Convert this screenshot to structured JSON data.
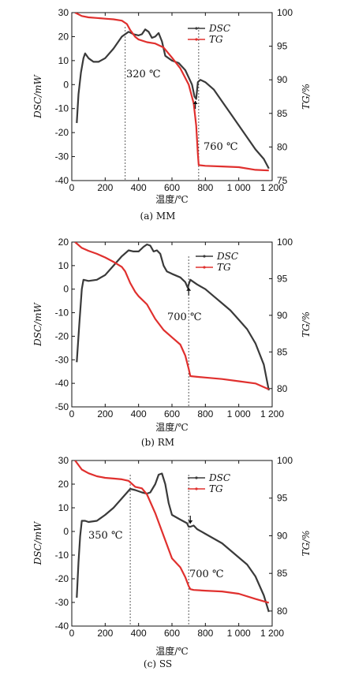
{
  "chart_data": [
    {
      "type": "line",
      "caption": "(a) MM",
      "xlabel": "温度/℃",
      "ylabel_left": "DSC/mW",
      "ylabel_right": "TG/%",
      "xlim": [
        0,
        1200
      ],
      "ylim_left": [
        -40,
        30
      ],
      "ylim_right": [
        75,
        100
      ],
      "x_ticks": [
        0,
        200,
        400,
        600,
        800,
        1000,
        1200
      ],
      "x_tick_labels": [
        "0",
        "200",
        "400",
        "600",
        "800",
        "1 000",
        "1 200"
      ],
      "y_ticks_left": [
        -40,
        -30,
        -20,
        -10,
        0,
        10,
        20,
        30
      ],
      "y_ticks_right": [
        75,
        80,
        85,
        90,
        95,
        100
      ],
      "legend": [
        "DSC",
        "TG"
      ],
      "legend_position": "top-right",
      "series": [
        {
          "name": "DSC",
          "axis": "left",
          "color": "#3a3a3a",
          "x": [
            30,
            40,
            55,
            70,
            80,
            100,
            130,
            160,
            200,
            250,
            300,
            340,
            370,
            400,
            420,
            440,
            460,
            480,
            500,
            520,
            540,
            560,
            600,
            640,
            680,
            700,
            720,
            735,
            745,
            755,
            770,
            800,
            850,
            900,
            950,
            1000,
            1050,
            1100,
            1150,
            1180
          ],
          "y": [
            -16,
            -4,
            5,
            11,
            13,
            11,
            9.5,
            9.5,
            11,
            15,
            20,
            22,
            21,
            20.5,
            21,
            23,
            22,
            19.5,
            20,
            21.5,
            18,
            12,
            10,
            9,
            6,
            3,
            0,
            -5,
            -6,
            1,
            2,
            1,
            -2,
            -7,
            -12,
            -17,
            -22,
            -27,
            -31,
            -35
          ]
        },
        {
          "name": "TG",
          "axis": "right",
          "color": "#e0302e",
          "x": [
            20,
            60,
            100,
            150,
            200,
            250,
            300,
            330,
            350,
            380,
            400,
            450,
            500,
            550,
            600,
            650,
            700,
            730,
            745,
            755,
            760,
            800,
            900,
            1000,
            1100,
            1180
          ],
          "y": [
            100,
            99.5,
            99.3,
            99.2,
            99.1,
            99,
            98.8,
            98.3,
            97.4,
            96.4,
            96,
            95.6,
            95.4,
            94.8,
            93.3,
            91.7,
            89.3,
            86.5,
            83.2,
            79,
            77.3,
            77.2,
            77.1,
            77,
            76.6,
            76.5
          ]
        }
      ],
      "annotations": [
        {
          "text": "320 ℃",
          "x": 320
        },
        {
          "text": "760 ℃",
          "x": 760
        }
      ]
    },
    {
      "type": "line",
      "caption": "(b) RM",
      "xlabel": "温度/℃",
      "ylabel_left": "DSC/mW",
      "ylabel_right": "TG/%",
      "xlim": [
        0,
        1200
      ],
      "ylim_left": [
        -50,
        20
      ],
      "ylim_right": [
        77.5,
        100
      ],
      "x_ticks": [
        0,
        200,
        400,
        600,
        800,
        1000,
        1200
      ],
      "x_tick_labels": [
        "0",
        "200",
        "400",
        "600",
        "800",
        "1 000",
        "1 200"
      ],
      "y_ticks_left": [
        -50,
        -40,
        -30,
        -20,
        -10,
        0,
        10,
        20
      ],
      "y_ticks_right": [
        80,
        85,
        90,
        95,
        100
      ],
      "legend": [
        "DSC",
        "TG"
      ],
      "legend_position": "top-right",
      "series": [
        {
          "name": "DSC",
          "axis": "left",
          "color": "#3a3a3a",
          "x": [
            30,
            45,
            60,
            70,
            100,
            150,
            200,
            250,
            300,
            340,
            370,
            400,
            430,
            450,
            470,
            490,
            510,
            530,
            550,
            570,
            600,
            650,
            680,
            695,
            700,
            710,
            750,
            800,
            850,
            900,
            950,
            1000,
            1050,
            1100,
            1150,
            1180
          ],
          "y": [
            -31,
            -15,
            0,
            4,
            3.5,
            4,
            6,
            10,
            14,
            16.5,
            16,
            16,
            18,
            19,
            18.5,
            16,
            16.5,
            15,
            10,
            7.5,
            6.5,
            5,
            3,
            0.5,
            2,
            4,
            2,
            0,
            -3,
            -6,
            -9,
            -13,
            -17,
            -23,
            -32,
            -43
          ]
        },
        {
          "name": "TG",
          "axis": "right",
          "color": "#e0302e",
          "x": [
            20,
            60,
            100,
            150,
            200,
            250,
            300,
            320,
            350,
            380,
            400,
            450,
            500,
            550,
            600,
            650,
            680,
            700,
            710,
            750,
            800,
            900,
            1000,
            1100,
            1180
          ],
          "y": [
            100,
            99.2,
            98.8,
            98.4,
            97.9,
            97.3,
            96.6,
            96,
            94.4,
            93.2,
            92.6,
            91.5,
            89.5,
            88,
            87,
            86,
            84.5,
            82.7,
            81.7,
            81.6,
            81.5,
            81.3,
            81,
            80.7,
            79.9
          ]
        }
      ],
      "annotations": [
        {
          "text": "700 ℃",
          "x": 700
        }
      ]
    },
    {
      "type": "line",
      "caption": "(c) SS",
      "xlabel": "温度/℃",
      "ylabel_left": "DSC/mW",
      "ylabel_right": "TG/%",
      "xlim": [
        0,
        1200
      ],
      "ylim_left": [
        -40,
        30
      ],
      "ylim_right": [
        78,
        100
      ],
      "x_ticks": [
        0,
        200,
        400,
        600,
        800,
        1000,
        1200
      ],
      "x_tick_labels": [
        "0",
        "200",
        "400",
        "600",
        "800",
        "1 000",
        "1 200"
      ],
      "y_ticks_left": [
        -40,
        -30,
        -20,
        -10,
        0,
        10,
        20,
        30
      ],
      "y_ticks_right": [
        80,
        85,
        90,
        95,
        100
      ],
      "legend": [
        "DSC",
        "TG"
      ],
      "legend_position": "top-right",
      "series": [
        {
          "name": "DSC",
          "axis": "left",
          "color": "#3a3a3a",
          "x": [
            30,
            40,
            50,
            60,
            80,
            100,
            150,
            200,
            250,
            300,
            350,
            380,
            420,
            450,
            470,
            500,
            520,
            540,
            560,
            580,
            600,
            650,
            690,
            700,
            710,
            730,
            750,
            800,
            850,
            900,
            950,
            1000,
            1050,
            1100,
            1150,
            1180
          ],
          "y": [
            -28,
            -13,
            -2,
            4.5,
            4.5,
            4,
            4.5,
            7,
            10,
            14,
            18,
            17.5,
            16.5,
            16,
            16.5,
            20,
            24,
            24.5,
            20,
            12,
            7,
            5,
            3.5,
            2,
            2,
            2.5,
            1,
            -1,
            -3,
            -5,
            -8,
            -11,
            -14,
            -19,
            -27,
            -34
          ]
        },
        {
          "name": "TG",
          "axis": "right",
          "color": "#e0302e",
          "x": [
            20,
            60,
            100,
            150,
            200,
            250,
            300,
            340,
            360,
            380,
            420,
            450,
            470,
            500,
            550,
            600,
            650,
            680,
            700,
            710,
            730,
            800,
            900,
            1000,
            1100,
            1180
          ],
          "y": [
            100,
            98.8,
            98.3,
            97.9,
            97.7,
            97.6,
            97.5,
            97.3,
            96.9,
            96.5,
            96.3,
            95.5,
            94.5,
            93,
            90,
            87,
            85.8,
            84.5,
            83.3,
            82.9,
            82.8,
            82.7,
            82.6,
            82.3,
            81.6,
            81.1
          ]
        }
      ],
      "annotations": [
        {
          "text": "350 ℃",
          "x": 350
        },
        {
          "text": "700 ℃",
          "x": 700
        }
      ]
    }
  ]
}
